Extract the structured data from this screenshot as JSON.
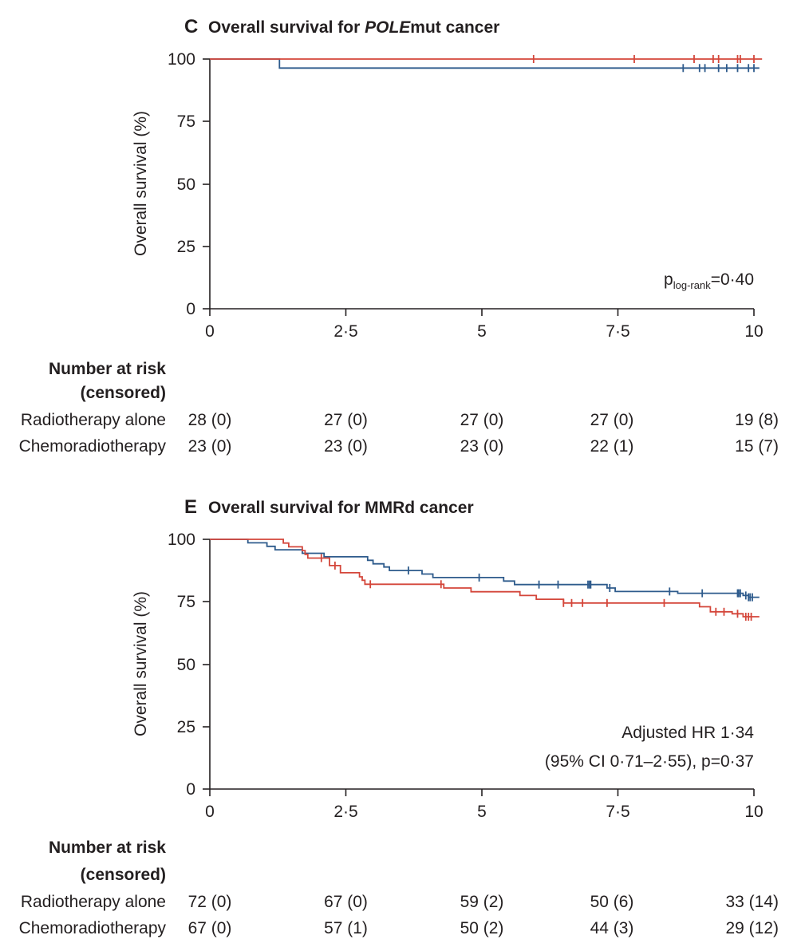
{
  "colors": {
    "radiotherapy": "#2e5b8c",
    "chemoradiotherapy": "#d4463a",
    "axis": "#231f20"
  },
  "legend_labels": {
    "radiotherapy": "Radiotherapy alone",
    "chemoradiotherapy": "Chemoradiotherapy"
  },
  "chart_data": [
    {
      "type": "line",
      "panel": "C",
      "title_plain": "Overall survival for ",
      "title_italic": "POLE",
      "title_tail": "mut cancer",
      "ylabel": "Overall survival (%)",
      "xlim": [
        0,
        10
      ],
      "ylim": [
        0,
        100
      ],
      "xticks": [
        "0",
        "2·5",
        "5",
        "7·5",
        "10"
      ],
      "yticks": [
        "0",
        "25",
        "50",
        "75",
        "100"
      ],
      "annotation": {
        "p": "p",
        "sub": "log-rank",
        "value": "=0·40"
      },
      "series": [
        {
          "key": "radiotherapy",
          "steps": [
            [
              0,
              100
            ],
            [
              1.28,
              96.4
            ],
            [
              10.1,
              96.4
            ]
          ],
          "censor_x": [
            8.7,
            9.0,
            9.1,
            9.35,
            9.5,
            9.7,
            9.9,
            10.0
          ]
        },
        {
          "key": "chemoradiotherapy",
          "steps": [
            [
              0,
              100
            ],
            [
              10.15,
              100
            ]
          ],
          "censor_x": [
            5.95,
            7.8,
            8.9,
            9.25,
            9.35,
            9.7,
            9.75,
            10.0
          ]
        }
      ],
      "risk_table": {
        "heading_line1": "Number at risk",
        "heading_line2": "(censored)",
        "rows": [
          {
            "label": "Radiotherapy alone",
            "values": [
              "28 (0)",
              "27 (0)",
              "27 (0)",
              "27 (0)",
              "19 (8)"
            ]
          },
          {
            "label": "Chemoradiotherapy",
            "values": [
              "23 (0)",
              "23 (0)",
              "23 (0)",
              "22 (1)",
              "15 (7)"
            ]
          }
        ]
      }
    },
    {
      "type": "line",
      "panel": "E",
      "title_plain": "Overall survival for MMRd cancer",
      "title_italic": "",
      "title_tail": "",
      "ylabel": "Overall survival (%)",
      "xlim": [
        0,
        10
      ],
      "ylim": [
        0,
        100
      ],
      "xticks": [
        "0",
        "2·5",
        "5",
        "7·5",
        "10"
      ],
      "yticks": [
        "0",
        "25",
        "50",
        "75",
        "100"
      ],
      "annotation_lines": [
        "Adjusted HR 1·34",
        "(95% CI 0·71–2·55), p=0·37"
      ],
      "series": [
        {
          "key": "radiotherapy",
          "steps": [
            [
              0,
              100
            ],
            [
              0.7,
              98.6
            ],
            [
              1.05,
              97.2
            ],
            [
              1.2,
              95.8
            ],
            [
              1.7,
              94.4
            ],
            [
              2.1,
              93.0
            ],
            [
              2.9,
              91.6
            ],
            [
              3.0,
              90.2
            ],
            [
              3.2,
              88.9
            ],
            [
              3.3,
              87.5
            ],
            [
              3.9,
              86.1
            ],
            [
              4.1,
              84.7
            ],
            [
              5.4,
              83.3
            ],
            [
              5.6,
              81.9
            ],
            [
              7.3,
              80.5
            ],
            [
              7.45,
              79.1
            ],
            [
              8.6,
              78.4
            ],
            [
              9.8,
              77.5
            ],
            [
              9.9,
              76.8
            ],
            [
              10.1,
              76.8
            ]
          ],
          "censor_x": [
            3.65,
            4.95,
            6.05,
            6.4,
            6.95,
            6.98,
            7.0,
            7.35,
            8.45,
            9.05,
            9.7,
            9.72,
            9.75,
            9.85,
            9.9,
            9.93,
            9.97
          ]
        },
        {
          "key": "chemoradiotherapy",
          "steps": [
            [
              0,
              100
            ],
            [
              1.35,
              98.5
            ],
            [
              1.45,
              97.0
            ],
            [
              1.7,
              95.5
            ],
            [
              1.75,
              94.0
            ],
            [
              1.8,
              92.5
            ],
            [
              2.2,
              89.5
            ],
            [
              2.4,
              86.6
            ],
            [
              2.75,
              85.0
            ],
            [
              2.8,
              83.6
            ],
            [
              2.85,
              82.0
            ],
            [
              4.3,
              80.5
            ],
            [
              4.8,
              79.0
            ],
            [
              5.7,
              77.5
            ],
            [
              6.0,
              76.0
            ],
            [
              6.5,
              74.5
            ],
            [
              9.0,
              73.0
            ],
            [
              9.2,
              71.0
            ],
            [
              9.6,
              70.2
            ],
            [
              9.8,
              69.0
            ],
            [
              10.1,
              69.0
            ]
          ],
          "censor_x": [
            2.05,
            2.3,
            2.95,
            4.25,
            6.5,
            6.65,
            6.85,
            7.3,
            8.35,
            9.3,
            9.45,
            9.7,
            9.85,
            9.9,
            9.95
          ]
        }
      ],
      "risk_table": {
        "heading_line1": "Number at risk",
        "heading_line2": "(censored)",
        "rows": [
          {
            "label": "Radiotherapy alone",
            "values": [
              "72 (0)",
              "67 (0)",
              "59 (2)",
              "50 (6)",
              "33 (14)"
            ]
          },
          {
            "label": "Chemoradiotherapy",
            "values": [
              "67 (0)",
              "57 (1)",
              "50 (2)",
              "44 (3)",
              "29 (12)"
            ]
          }
        ]
      }
    }
  ]
}
